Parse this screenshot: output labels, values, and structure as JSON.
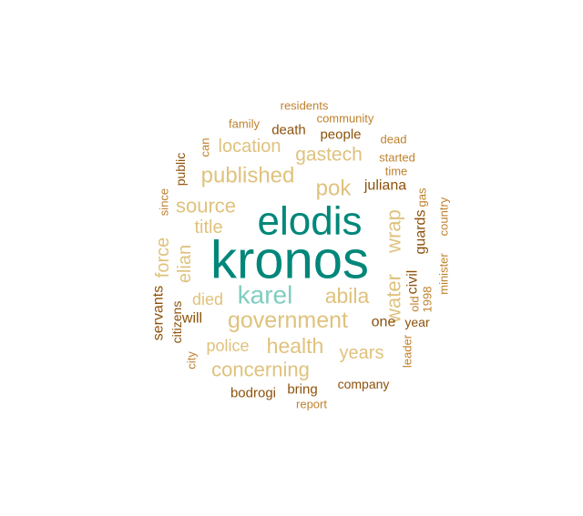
{
  "colors": {
    "teal_dark": "#01877a",
    "teal_light": "#80cdc1",
    "tan_light": "#dfc27d",
    "brown_mid": "#bf812d",
    "brown_dark": "#8c510a"
  },
  "words": [
    {
      "text": "kronos",
      "weight": 100,
      "color": "#01877a"
    },
    {
      "text": "elodis",
      "weight": 78,
      "color": "#01877a"
    },
    {
      "text": "karel",
      "weight": 50,
      "color": "#80cdc1"
    },
    {
      "text": "government",
      "weight": 42,
      "color": "#dfc27d"
    },
    {
      "text": "published",
      "weight": 38,
      "color": "#dfc27d"
    },
    {
      "text": "pok",
      "weight": 36,
      "color": "#dfc27d"
    },
    {
      "text": "health",
      "weight": 34,
      "color": "#dfc27d"
    },
    {
      "text": "abila",
      "weight": 33,
      "color": "#dfc27d"
    },
    {
      "text": "water",
      "weight": 33,
      "color": "#dfc27d"
    },
    {
      "text": "wrap",
      "weight": 33,
      "color": "#dfc27d"
    },
    {
      "text": "source",
      "weight": 32,
      "color": "#dfc27d"
    },
    {
      "text": "concerning",
      "weight": 32,
      "color": "#dfc27d"
    },
    {
      "text": "gastech",
      "weight": 31,
      "color": "#dfc27d"
    },
    {
      "text": "location",
      "weight": 30,
      "color": "#dfc27d"
    },
    {
      "text": "years",
      "weight": 30,
      "color": "#dfc27d"
    },
    {
      "text": "title",
      "weight": 30,
      "color": "#dfc27d"
    },
    {
      "text": "force",
      "weight": 30,
      "color": "#dfc27d"
    },
    {
      "text": "elian",
      "weight": 30,
      "color": "#dfc27d"
    },
    {
      "text": "died",
      "weight": 27,
      "color": "#dfc27d"
    },
    {
      "text": "police",
      "weight": 27,
      "color": "#dfc27d"
    },
    {
      "text": "juliana",
      "weight": 25,
      "color": "#8c510a"
    },
    {
      "text": "civil",
      "weight": 25,
      "color": "#8c510a"
    },
    {
      "text": "guards",
      "weight": 25,
      "color": "#8c510a"
    },
    {
      "text": "servants",
      "weight": 23,
      "color": "#8c510a"
    },
    {
      "text": "one",
      "weight": 23,
      "color": "#8c510a"
    },
    {
      "text": "will",
      "weight": 23,
      "color": "#8c510a"
    },
    {
      "text": "people",
      "weight": 22,
      "color": "#8c510a"
    },
    {
      "text": "death",
      "weight": 22,
      "color": "#8c510a"
    },
    {
      "text": "bodrogi",
      "weight": 22,
      "color": "#8c510a"
    },
    {
      "text": "bring",
      "weight": 22,
      "color": "#8c510a"
    },
    {
      "text": "year",
      "weight": 21,
      "color": "#8c510a"
    },
    {
      "text": "public",
      "weight": 20,
      "color": "#8c510a"
    },
    {
      "text": "citizens",
      "weight": 20,
      "color": "#8c510a"
    },
    {
      "text": "company",
      "weight": 20,
      "color": "#8c510a"
    },
    {
      "text": "community",
      "weight": 18,
      "color": "#bf812d"
    },
    {
      "text": "residents",
      "weight": 18,
      "color": "#bf812d"
    },
    {
      "text": "family",
      "weight": 18,
      "color": "#bf812d"
    },
    {
      "text": "can",
      "weight": 18,
      "color": "#bf812d"
    },
    {
      "text": "since",
      "weight": 18,
      "color": "#bf812d"
    },
    {
      "text": "dead",
      "weight": 18,
      "color": "#bf812d"
    },
    {
      "text": "started",
      "weight": 18,
      "color": "#bf812d"
    },
    {
      "text": "time",
      "weight": 18,
      "color": "#bf812d"
    },
    {
      "text": "gas",
      "weight": 18,
      "color": "#bf812d"
    },
    {
      "text": "country",
      "weight": 18,
      "color": "#bf812d"
    },
    {
      "text": "minister",
      "weight": 18,
      "color": "#bf812d"
    },
    {
      "text": "1998",
      "weight": 18,
      "color": "#bf812d"
    },
    {
      "text": "old",
      "weight": 18,
      "color": "#bf812d"
    },
    {
      "text": "leader",
      "weight": 18,
      "color": "#bf812d"
    },
    {
      "text": "city",
      "weight": 18,
      "color": "#bf812d"
    },
    {
      "text": "report",
      "weight": 18,
      "color": "#bf812d"
    }
  ]
}
